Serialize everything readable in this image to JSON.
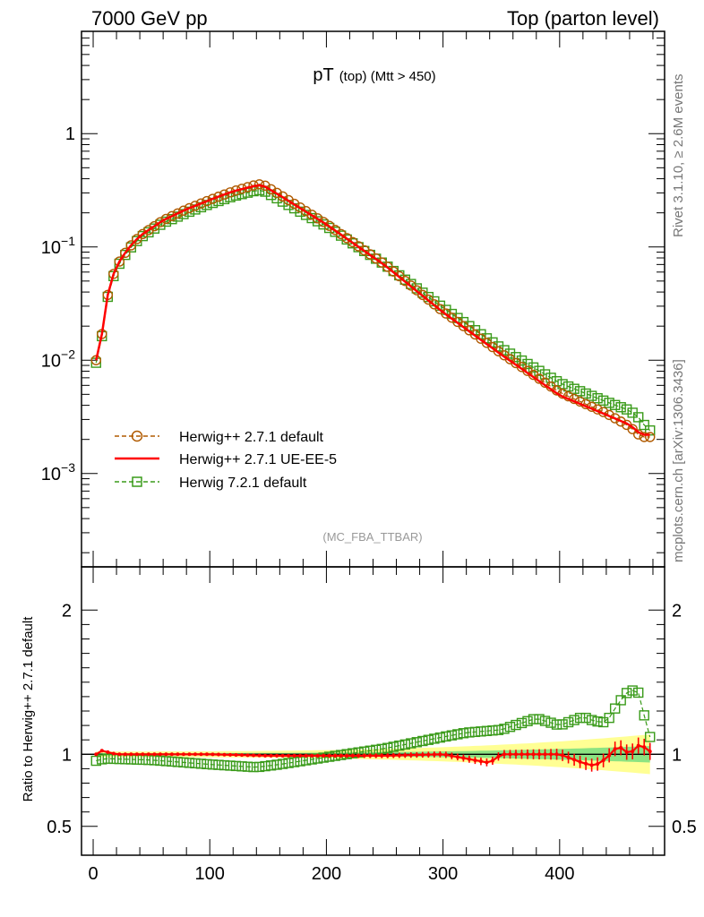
{
  "header": {
    "left": "7000 GeV pp",
    "right": "Top (parton level)"
  },
  "side": {
    "rivet": "Rivet 3.1.10, ≥ 2.6M events",
    "mcplots": "mcplots.cern.ch [arXiv:1306.3436]"
  },
  "chart_data": [
    {
      "type": "line",
      "title_main": "pT",
      "title_sub": "(top) (Mtt > 450)",
      "watermark": "(MC_FBA_TTBAR)",
      "log_y": true,
      "xlim": [
        -10,
        490
      ],
      "ylim": [
        0.00015,
        8.0
      ],
      "y_ticks": [
        {
          "v": 0.001,
          "base": "10",
          "exp": "−3"
        },
        {
          "v": 0.01,
          "base": "10",
          "exp": "−2"
        },
        {
          "v": 0.1,
          "base": "10",
          "exp": "−1"
        },
        {
          "v": 1,
          "label": "1"
        }
      ],
      "legend_position": "lower-left",
      "series": [
        {
          "name": "Herwig++ 2.7.1 default",
          "color": "#b05a00",
          "marker": "circle",
          "style": "dashed",
          "knots_x": [
            5,
            10,
            15,
            20,
            30,
            40,
            60,
            80,
            100,
            120,
            140,
            145,
            160,
            180,
            200,
            250,
            300,
            350,
            400,
            440,
            460,
            470,
            475
          ],
          "knots_y": [
            0.01,
            0.029,
            0.049,
            0.068,
            0.097,
            0.125,
            0.172,
            0.215,
            0.26,
            0.31,
            0.355,
            0.36,
            0.29,
            0.215,
            0.16,
            0.07,
            0.027,
            0.0115,
            0.0052,
            0.0034,
            0.0026,
            0.0021,
            0.0021
          ]
        },
        {
          "name": "Herwig++ 2.7.1 UE-EE-5",
          "color": "#ff0000",
          "marker": "none",
          "style": "solid",
          "knots_x": [
            5,
            10,
            15,
            20,
            30,
            40,
            60,
            80,
            100,
            120,
            140,
            145,
            160,
            180,
            200,
            250,
            300,
            350,
            400,
            440,
            460,
            470,
            475
          ],
          "knots_y": [
            0.01,
            0.029,
            0.049,
            0.068,
            0.097,
            0.125,
            0.172,
            0.215,
            0.26,
            0.31,
            0.348,
            0.352,
            0.285,
            0.212,
            0.158,
            0.069,
            0.0265,
            0.0112,
            0.0049,
            0.0033,
            0.0027,
            0.0022,
            0.0022
          ]
        },
        {
          "name": "Herwig 7.2.1 default",
          "color": "#3a9b1a",
          "marker": "square",
          "style": "dashed",
          "knots_x": [
            5,
            10,
            15,
            20,
            30,
            40,
            60,
            80,
            100,
            120,
            140,
            145,
            160,
            180,
            200,
            250,
            300,
            350,
            400,
            440,
            460,
            470,
            475
          ],
          "knots_y": [
            0.0095,
            0.028,
            0.047,
            0.065,
            0.093,
            0.12,
            0.163,
            0.2,
            0.24,
            0.28,
            0.315,
            0.318,
            0.26,
            0.198,
            0.153,
            0.07,
            0.029,
            0.0127,
            0.0063,
            0.0043,
            0.0036,
            0.003,
            0.0024
          ]
        }
      ]
    },
    {
      "type": "line",
      "ylabel": "Ratio to Herwig++ 2.7.1 default",
      "xlim": [
        -10,
        490
      ],
      "ylim": [
        0.3,
        2.3
      ],
      "x_ticks": [
        "0",
        "100",
        "200",
        "300",
        "400"
      ],
      "y_ticks": [
        "0.5",
        "1",
        "2"
      ],
      "series": [
        {
          "name": "Herwig++ 2.7.1 UE-EE-5",
          "color": "#ff0000",
          "knots_x": [
            0,
            5,
            10,
            15,
            20,
            30,
            40,
            100,
            150,
            200,
            250,
            300,
            340,
            350,
            400,
            420,
            430,
            440,
            450,
            460,
            470,
            475
          ],
          "knots_y": [
            0.97,
            1.03,
            1.02,
            1.01,
            1.0,
            1.0,
            1.0,
            1.0,
            0.99,
            0.99,
            0.99,
            1.0,
            0.94,
            1.0,
            1.0,
            0.94,
            0.92,
            0.97,
            1.06,
            1.0,
            1.08,
            1.02
          ]
        },
        {
          "name": "Herwig 7.2.1 default",
          "color": "#3a9b1a",
          "knots_x": [
            0,
            5,
            10,
            50,
            100,
            140,
            160,
            200,
            250,
            300,
            320,
            350,
            380,
            400,
            420,
            430,
            440,
            450,
            460,
            470,
            475
          ],
          "knots_y": [
            0.95,
            0.96,
            0.97,
            0.96,
            0.93,
            0.91,
            0.93,
            0.98,
            1.04,
            1.12,
            1.15,
            1.17,
            1.25,
            1.2,
            1.26,
            1.23,
            1.22,
            1.35,
            1.45,
            1.42,
            1.12
          ]
        }
      ]
    }
  ]
}
